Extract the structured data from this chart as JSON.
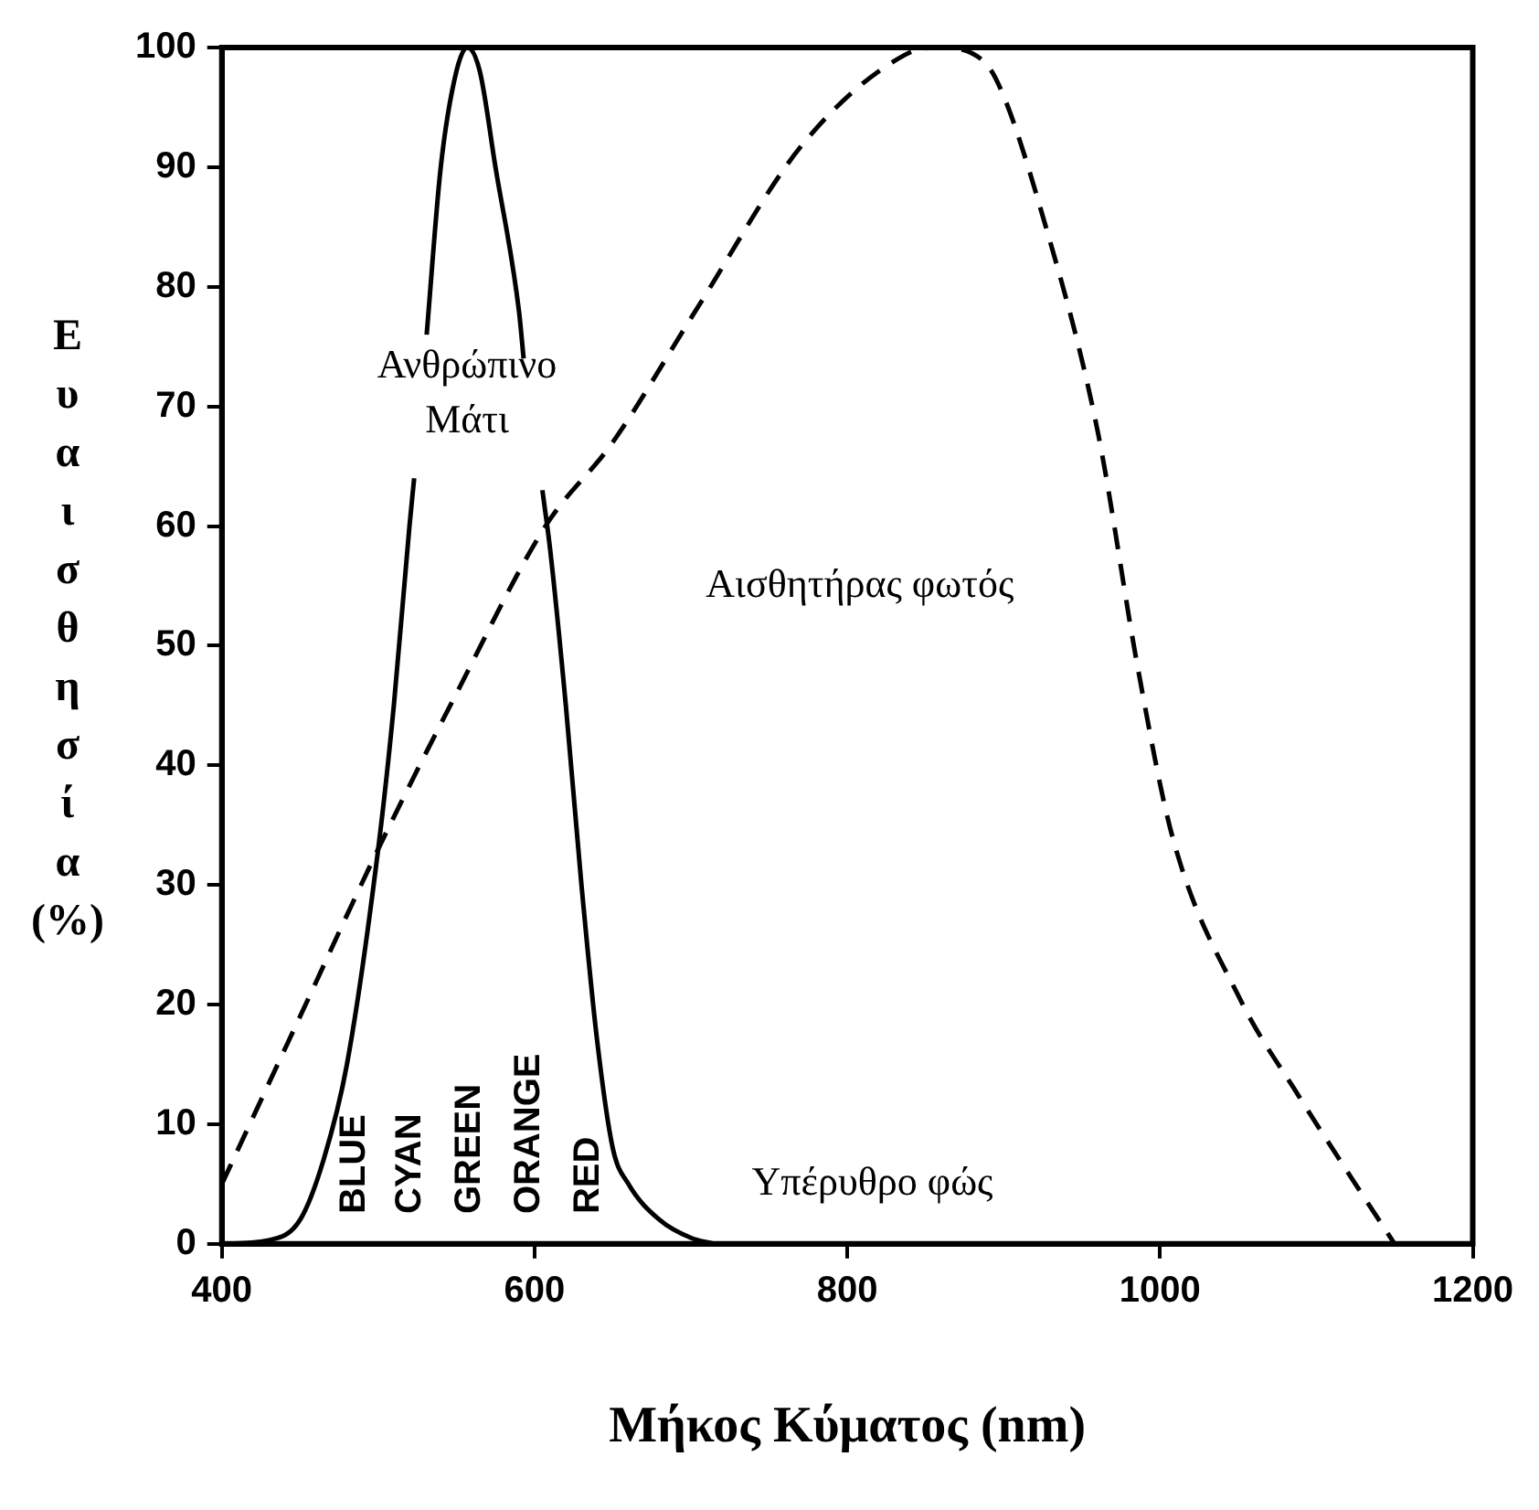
{
  "chart_data": {
    "type": "line",
    "xlabel": "Μήκος Κύματος (nm)",
    "ylabel": "Ευαισθησία (%)",
    "xlim": [
      400,
      1200
    ],
    "xticks": [
      400,
      600,
      800,
      {
        "value": 1000,
        "label": "1000"
      },
      {
        "value": 1200,
        "label": "1200"
      }
    ],
    "ylim": [
      0,
      100
    ],
    "yticks": [
      0,
      10,
      20,
      30,
      40,
      50,
      60,
      70,
      80,
      90,
      100
    ],
    "grid": false,
    "legend": false,
    "marker": "none",
    "series": [
      {
        "color": "#000000",
        "line_style": "solid",
        "x": [
          400,
          430,
          450,
          465,
          480,
          500,
          510,
          520,
          523,
          527,
          531,
          540,
          550,
          557,
          565,
          575,
          590,
          593,
          600,
          605,
          610,
          620,
          630,
          640,
          650,
          660,
          680,
          700,
          715
        ],
        "values": [
          0,
          0.3,
          2,
          7,
          15,
          33,
          45,
          60,
          64,
          null,
          76,
          90,
          98,
          100,
          98,
          90,
          78,
          74,
          null,
          63,
          58,
          45,
          30,
          17,
          8,
          5,
          2,
          0.5,
          0
        ]
      },
      {
        "color": "#000000",
        "line_style": "dashed",
        "x": [
          400,
          450,
          500,
          550,
          607,
          650,
          703,
          772,
          837,
          858,
          880,
          895,
          927,
          960,
          986,
          1008,
          1051,
          1089,
          1120,
          1150
        ],
        "values": [
          5,
          19,
          33,
          46,
          60,
          67,
          78,
          92,
          99.4,
          100,
          99.5,
          97.4,
          85,
          68,
          48,
          34,
          20.5,
          12.3,
          6,
          0
        ]
      }
    ],
    "annotations": [
      "Ανθρώπινο\nΜάτι",
      "Αισθητήρας φωτός",
      "Υπέρυθρο φώς",
      "BLUE",
      "CYAN",
      "GREEN",
      "ORANGE",
      "RED"
    ]
  }
}
